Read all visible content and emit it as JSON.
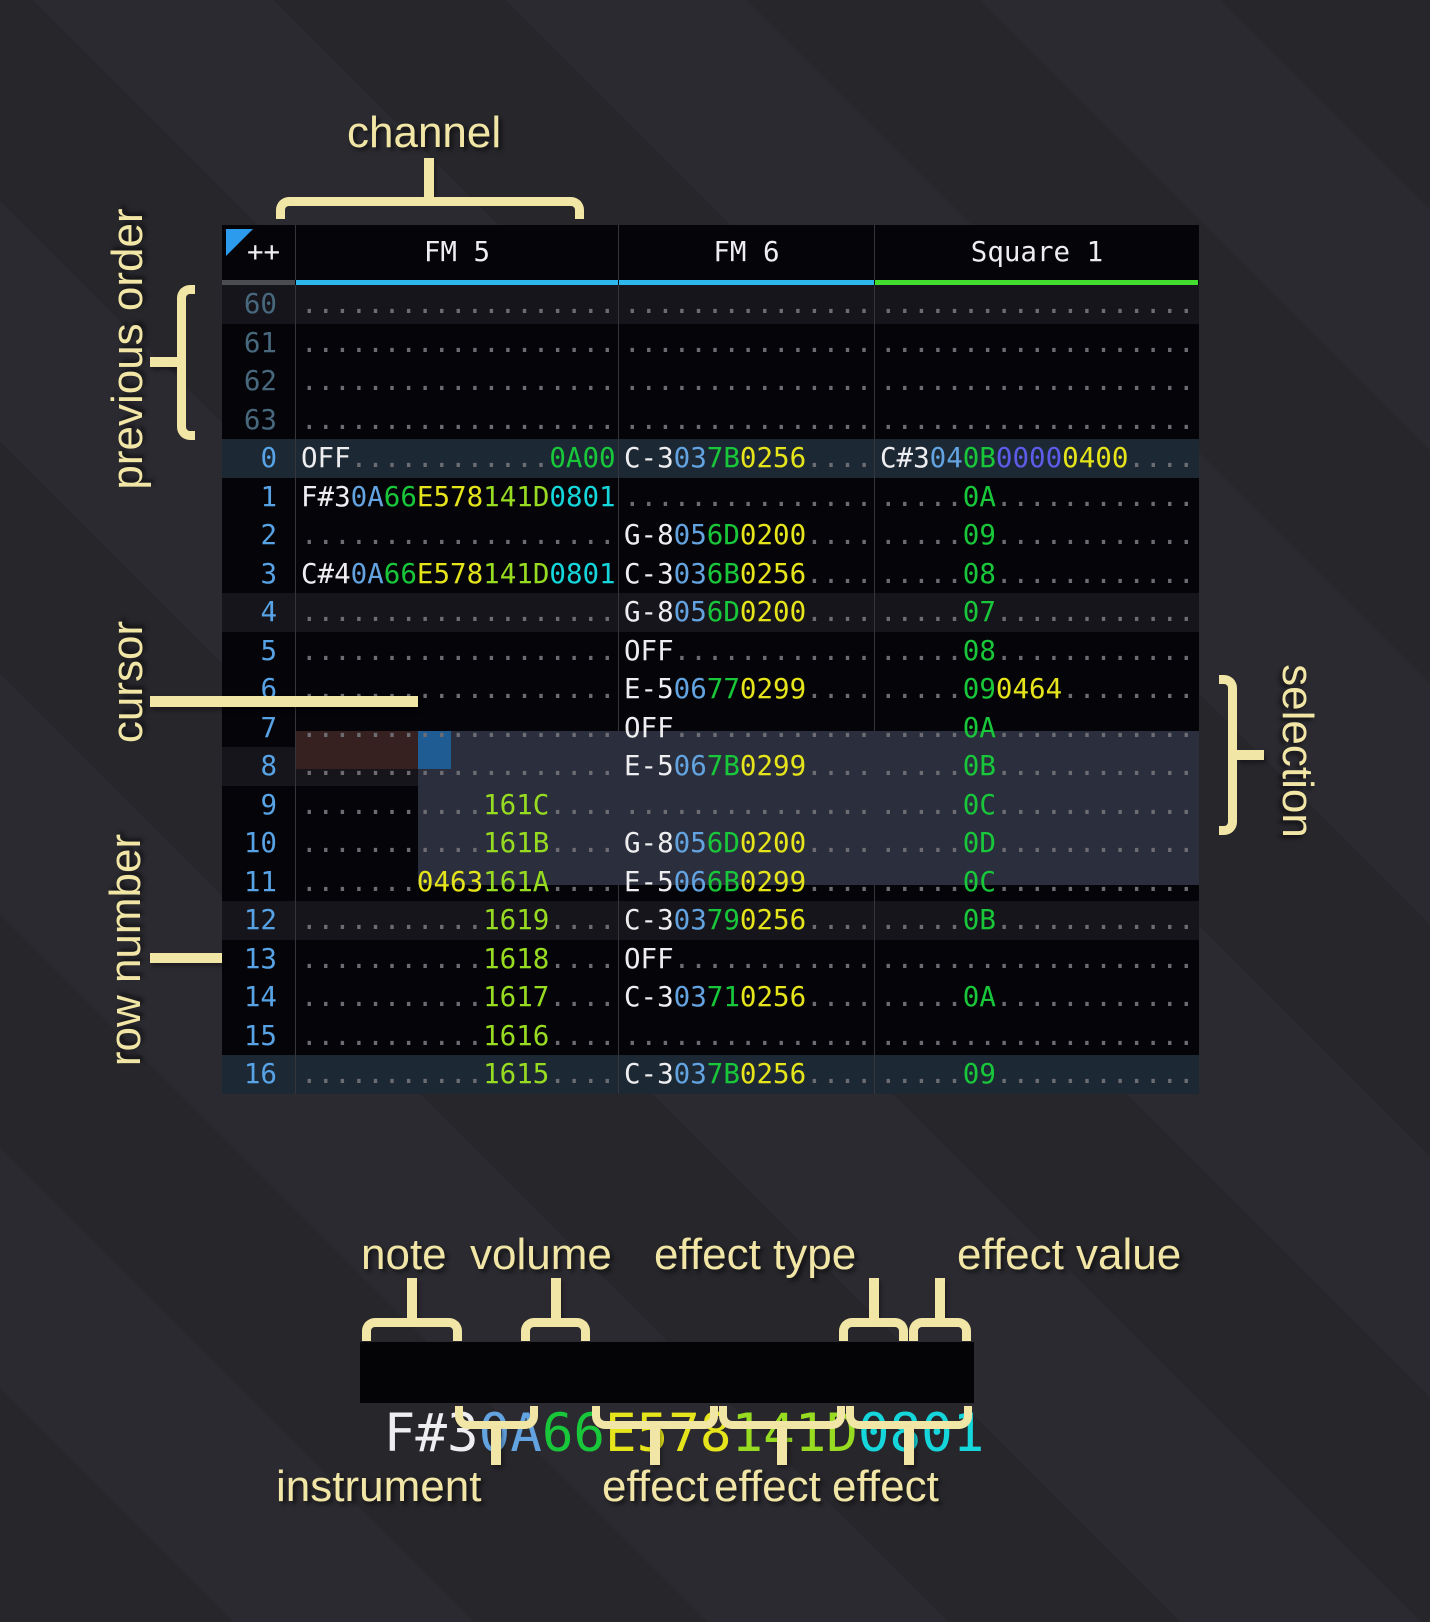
{
  "colors": {
    "note": "#eeeef0",
    "ins": "#63a3e0",
    "vol": "#19c73a",
    "fxy": "#e6e41a",
    "fxl": "#97dc21",
    "fxc": "#15d6da",
    "fxi": "#5c5ce8",
    "dim": "#6c6c72",
    "row_num": "#57a3e6",
    "row_num_prev": "#47687d",
    "underline_fm": "#2eb7ec",
    "underline_square": "#43dd30",
    "underline_gutter": "#4b4b52",
    "cursor": "#1f5c94",
    "selection": "#2b2e3c",
    "cursor_row": "#362020",
    "annotation": "#f2e6a6"
  },
  "header": {
    "corner": "++",
    "channels": [
      {
        "name": "FM 5",
        "underline": "#2eb7ec"
      },
      {
        "name": "FM 6",
        "underline": "#2eb7ec"
      },
      {
        "name": "Square 1",
        "underline": "#43dd30"
      }
    ]
  },
  "annotations": {
    "channel": "channel",
    "previous_order": "previous order",
    "cursor": "cursor",
    "row_number": "row number",
    "selection": "selection",
    "note": "note",
    "volume": "volume",
    "effect_type": "effect type",
    "effect_value": "effect value",
    "instrument": "instrument",
    "effect_1": "effect",
    "effect_2": "effect",
    "effect_3": "effect"
  },
  "example": {
    "segments": [
      [
        "F#3",
        "note"
      ],
      [
        "0A",
        "ins"
      ],
      [
        "66",
        "vol"
      ],
      [
        "E578",
        "fxy"
      ],
      [
        "141D",
        "fxl"
      ],
      [
        "0801",
        "fxc"
      ]
    ]
  },
  "pattern": {
    "prev_rows": [
      {
        "n": "60",
        "hl": "4",
        "cells": [
          [
            [
              "...................",
              "dim"
            ]
          ],
          [
            [
              "...............",
              "dim"
            ]
          ],
          [
            [
              "...................",
              "dim"
            ]
          ]
        ]
      },
      {
        "n": "61",
        "hl": "",
        "cells": [
          [
            [
              "...................",
              "dim"
            ]
          ],
          [
            [
              "...............",
              "dim"
            ]
          ],
          [
            [
              "...................",
              "dim"
            ]
          ]
        ]
      },
      {
        "n": "62",
        "hl": "",
        "cells": [
          [
            [
              "...................",
              "dim"
            ]
          ],
          [
            [
              "...............",
              "dim"
            ]
          ],
          [
            [
              "...................",
              "dim"
            ]
          ]
        ]
      },
      {
        "n": "63",
        "hl": "",
        "cells": [
          [
            [
              "...................",
              "dim"
            ]
          ],
          [
            [
              "...............",
              "dim"
            ]
          ],
          [
            [
              "...................",
              "dim"
            ]
          ]
        ]
      }
    ],
    "rows": [
      {
        "n": "0",
        "hl": "16",
        "cells": [
          [
            [
              "OFF",
              "note"
            ],
            [
              "............",
              "dim"
            ],
            [
              "0A00",
              "vol"
            ]
          ],
          [
            [
              "C-3",
              "note"
            ],
            [
              "03",
              "ins"
            ],
            [
              "7B",
              "vol"
            ],
            [
              "0256",
              "fxy"
            ],
            [
              "....",
              "dim"
            ]
          ],
          [
            [
              "C#3",
              "note"
            ],
            [
              "04",
              "ins"
            ],
            [
              "0B",
              "vol"
            ],
            [
              "0000",
              "fxi"
            ],
            [
              "0400",
              "fxy"
            ],
            [
              "....",
              "dim"
            ]
          ]
        ]
      },
      {
        "n": "1",
        "hl": "",
        "cells": [
          [
            [
              "F#3",
              "note"
            ],
            [
              "0A",
              "ins"
            ],
            [
              "66",
              "vol"
            ],
            [
              "E578",
              "fxy"
            ],
            [
              "141D",
              "fxl"
            ],
            [
              "0801",
              "fxc"
            ]
          ],
          [
            [
              "...............",
              "dim"
            ]
          ],
          [
            [
              ".....",
              "dim"
            ],
            [
              "0A",
              "vol"
            ],
            [
              "............",
              "dim"
            ]
          ]
        ]
      },
      {
        "n": "2",
        "hl": "",
        "cells": [
          [
            [
              "...................",
              "dim"
            ]
          ],
          [
            [
              "G-8",
              "note"
            ],
            [
              "05",
              "ins"
            ],
            [
              "6D",
              "vol"
            ],
            [
              "0200",
              "fxy"
            ],
            [
              "....",
              "dim"
            ]
          ],
          [
            [
              ".....",
              "dim"
            ],
            [
              "09",
              "vol"
            ],
            [
              "............",
              "dim"
            ]
          ]
        ]
      },
      {
        "n": "3",
        "hl": "",
        "cells": [
          [
            [
              "C#4",
              "note"
            ],
            [
              "0A",
              "ins"
            ],
            [
              "66",
              "vol"
            ],
            [
              "E578",
              "fxy"
            ],
            [
              "141D",
              "fxl"
            ],
            [
              "0801",
              "fxc"
            ]
          ],
          [
            [
              "C-3",
              "note"
            ],
            [
              "03",
              "ins"
            ],
            [
              "6B",
              "vol"
            ],
            [
              "0256",
              "fxy"
            ],
            [
              "....",
              "dim"
            ]
          ],
          [
            [
              ".....",
              "dim"
            ],
            [
              "08",
              "vol"
            ],
            [
              "............",
              "dim"
            ]
          ]
        ]
      },
      {
        "n": "4",
        "hl": "4",
        "cells": [
          [
            [
              "...................",
              "dim"
            ]
          ],
          [
            [
              "G-8",
              "note"
            ],
            [
              "05",
              "ins"
            ],
            [
              "6D",
              "vol"
            ],
            [
              "0200",
              "fxy"
            ],
            [
              "....",
              "dim"
            ]
          ],
          [
            [
              ".....",
              "dim"
            ],
            [
              "07",
              "vol"
            ],
            [
              "............",
              "dim"
            ]
          ]
        ]
      },
      {
        "n": "5",
        "hl": "",
        "cells": [
          [
            [
              "...................",
              "dim"
            ]
          ],
          [
            [
              "OFF",
              "note"
            ],
            [
              "............",
              "dim"
            ]
          ],
          [
            [
              ".....",
              "dim"
            ],
            [
              "08",
              "vol"
            ],
            [
              "............",
              "dim"
            ]
          ]
        ]
      },
      {
        "n": "6",
        "hl": "",
        "cells": [
          [
            [
              "...................",
              "dim"
            ]
          ],
          [
            [
              "E-5",
              "note"
            ],
            [
              "06",
              "ins"
            ],
            [
              "77",
              "vol"
            ],
            [
              "0299",
              "fxy"
            ],
            [
              "....",
              "dim"
            ]
          ],
          [
            [
              ".....",
              "dim"
            ],
            [
              "09",
              "vol"
            ],
            [
              "0464",
              "fxy"
            ],
            [
              "........",
              "dim"
            ]
          ]
        ]
      },
      {
        "n": "7",
        "hl": "",
        "cells": [
          [
            [
              "...................",
              "dim"
            ]
          ],
          [
            [
              "OFF",
              "note"
            ],
            [
              "............",
              "dim"
            ]
          ],
          [
            [
              ".....",
              "dim"
            ],
            [
              "0A",
              "vol"
            ],
            [
              "............",
              "dim"
            ]
          ]
        ]
      },
      {
        "n": "8",
        "hl": "4",
        "cells": [
          [
            [
              "...................",
              "dim"
            ]
          ],
          [
            [
              "E-5",
              "note"
            ],
            [
              "06",
              "ins"
            ],
            [
              "7B",
              "vol"
            ],
            [
              "0299",
              "fxy"
            ],
            [
              "....",
              "dim"
            ]
          ],
          [
            [
              ".....",
              "dim"
            ],
            [
              "0B",
              "vol"
            ],
            [
              "............",
              "dim"
            ]
          ]
        ]
      },
      {
        "n": "9",
        "hl": "",
        "cells": [
          [
            [
              "...........",
              "dim"
            ],
            [
              "161C",
              "fxl"
            ],
            [
              "....",
              "dim"
            ]
          ],
          [
            [
              "...............",
              "dim"
            ]
          ],
          [
            [
              ".....",
              "dim"
            ],
            [
              "0C",
              "vol"
            ],
            [
              "............",
              "dim"
            ]
          ]
        ]
      },
      {
        "n": "10",
        "hl": "",
        "cells": [
          [
            [
              "...........",
              "dim"
            ],
            [
              "161B",
              "fxl"
            ],
            [
              "....",
              "dim"
            ]
          ],
          [
            [
              "G-8",
              "note"
            ],
            [
              "05",
              "ins"
            ],
            [
              "6D",
              "vol"
            ],
            [
              "0200",
              "fxy"
            ],
            [
              "....",
              "dim"
            ]
          ],
          [
            [
              ".....",
              "dim"
            ],
            [
              "0D",
              "vol"
            ],
            [
              "............",
              "dim"
            ]
          ]
        ]
      },
      {
        "n": "11",
        "hl": "",
        "cells": [
          [
            [
              ".......",
              "dim"
            ],
            [
              "0463",
              "fxy"
            ],
            [
              "161A",
              "fxl"
            ],
            [
              "....",
              "dim"
            ]
          ],
          [
            [
              "E-5",
              "note"
            ],
            [
              "06",
              "ins"
            ],
            [
              "6B",
              "vol"
            ],
            [
              "0299",
              "fxy"
            ],
            [
              "....",
              "dim"
            ]
          ],
          [
            [
              ".....",
              "dim"
            ],
            [
              "0C",
              "vol"
            ],
            [
              "............",
              "dim"
            ]
          ]
        ]
      },
      {
        "n": "12",
        "hl": "4",
        "cells": [
          [
            [
              "...........",
              "dim"
            ],
            [
              "1619",
              "fxl"
            ],
            [
              "....",
              "dim"
            ]
          ],
          [
            [
              "C-3",
              "note"
            ],
            [
              "03",
              "ins"
            ],
            [
              "79",
              "vol"
            ],
            [
              "0256",
              "fxy"
            ],
            [
              "....",
              "dim"
            ]
          ],
          [
            [
              ".....",
              "dim"
            ],
            [
              "0B",
              "vol"
            ],
            [
              "............",
              "dim"
            ]
          ]
        ]
      },
      {
        "n": "13",
        "hl": "",
        "cells": [
          [
            [
              "...........",
              "dim"
            ],
            [
              "1618",
              "fxl"
            ],
            [
              "....",
              "dim"
            ]
          ],
          [
            [
              "OFF",
              "note"
            ],
            [
              "............",
              "dim"
            ]
          ],
          [
            [
              "...................",
              "dim"
            ]
          ]
        ]
      },
      {
        "n": "14",
        "hl": "",
        "cells": [
          [
            [
              "...........",
              "dim"
            ],
            [
              "1617",
              "fxl"
            ],
            [
              "....",
              "dim"
            ]
          ],
          [
            [
              "C-3",
              "note"
            ],
            [
              "03",
              "ins"
            ],
            [
              "71",
              "vol"
            ],
            [
              "0256",
              "fxy"
            ],
            [
              "....",
              "dim"
            ]
          ],
          [
            [
              ".....",
              "dim"
            ],
            [
              "0A",
              "vol"
            ],
            [
              "............",
              "dim"
            ]
          ]
        ]
      },
      {
        "n": "15",
        "hl": "",
        "cells": [
          [
            [
              "...........",
              "dim"
            ],
            [
              "1616",
              "fxl"
            ],
            [
              "....",
              "dim"
            ]
          ],
          [
            [
              "...............",
              "dim"
            ]
          ],
          [
            [
              "...................",
              "dim"
            ]
          ]
        ]
      },
      {
        "n": "16",
        "hl": "16",
        "cells": [
          [
            [
              "...........",
              "dim"
            ],
            [
              "1615",
              "fxl"
            ],
            [
              "....",
              "dim"
            ]
          ],
          [
            [
              "C-3",
              "note"
            ],
            [
              "03",
              "ins"
            ],
            [
              "7B",
              "vol"
            ],
            [
              "0256",
              "fxy"
            ],
            [
              "....",
              "dim"
            ]
          ],
          [
            [
              ".....",
              "dim"
            ],
            [
              "09",
              "vol"
            ],
            [
              "............",
              "dim"
            ]
          ]
        ]
      }
    ]
  }
}
